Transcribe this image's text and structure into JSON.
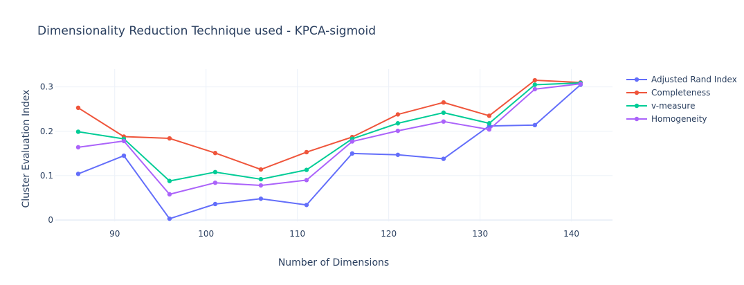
{
  "chart_data": {
    "type": "line",
    "title": "Dimensionality Reduction Technique used - KPCA-sigmoid",
    "xlabel": "Number of Dimensions",
    "ylabel": "Cluster Evaluation Index",
    "xlim": [
      83.5,
      144.5
    ],
    "ylim": [
      -0.003,
      0.34
    ],
    "x_ticks": [
      90,
      100,
      110,
      120,
      130,
      140
    ],
    "y_ticks": [
      0,
      0.1,
      0.2,
      0.3
    ],
    "grid": true,
    "legend_position": "top-right",
    "x": [
      86,
      91,
      96,
      101,
      106,
      111,
      116,
      121,
      126,
      131,
      136,
      141
    ],
    "series": [
      {
        "name": "Adjusted Rand Index",
        "color": "#636efa",
        "values": [
          0.104,
          0.145,
          0.003,
          0.036,
          0.048,
          0.034,
          0.15,
          0.147,
          0.138,
          0.212,
          0.214,
          0.305
        ]
      },
      {
        "name": "Completeness",
        "color": "#EF553B",
        "values": [
          0.253,
          0.188,
          0.184,
          0.151,
          0.114,
          0.153,
          0.187,
          0.238,
          0.265,
          0.235,
          0.315,
          0.31
        ]
      },
      {
        "name": "v-measure",
        "color": "#00cc96",
        "values": [
          0.199,
          0.183,
          0.088,
          0.108,
          0.092,
          0.113,
          0.183,
          0.218,
          0.242,
          0.218,
          0.305,
          0.309
        ]
      },
      {
        "name": "Homogeneity",
        "color": "#ab63fa",
        "values": [
          0.164,
          0.178,
          0.058,
          0.084,
          0.078,
          0.09,
          0.177,
          0.201,
          0.222,
          0.204,
          0.295,
          0.307
        ]
      }
    ]
  }
}
